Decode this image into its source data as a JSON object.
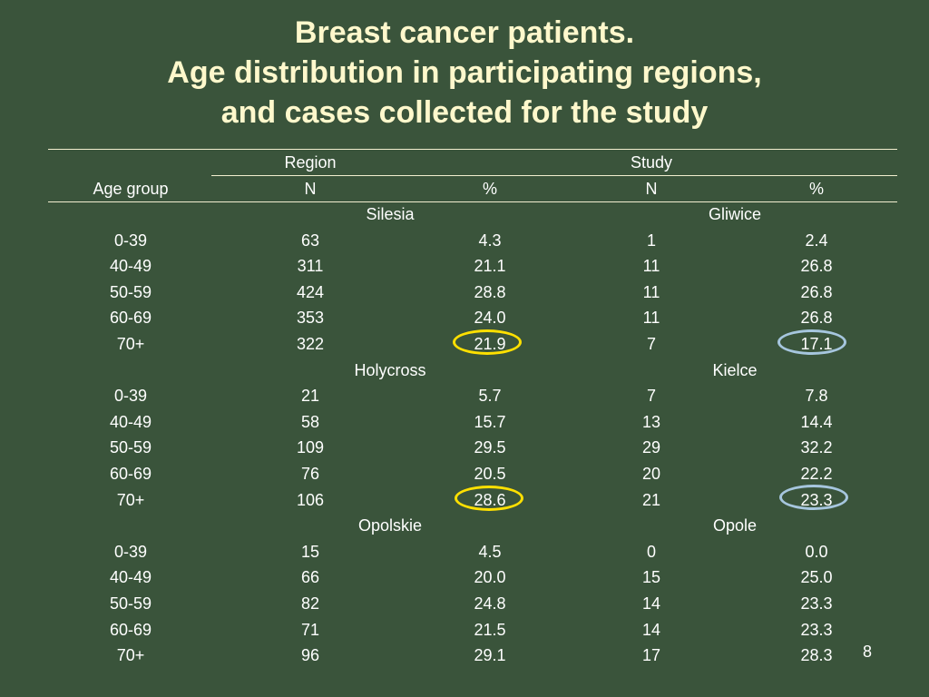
{
  "title": {
    "line1": "Breast cancer patients.",
    "line2": "Age distribution in participating regions,",
    "line3": "and cases collected for the study"
  },
  "table": {
    "headers": {
      "age_group": "Age group",
      "region": "Region",
      "study": "Study",
      "region_n": "N",
      "region_pct": "%",
      "study_n": "N",
      "study_pct": "%"
    },
    "groups": [
      {
        "region": "Silesia",
        "study": "Gliwice",
        "rows": [
          {
            "age": "0-39",
            "rn": "63",
            "rp": "4.3",
            "sn": "1",
            "sp": "2.4"
          },
          {
            "age": "40-49",
            "rn": "311",
            "rp": "21.1",
            "sn": "11",
            "sp": "26.8"
          },
          {
            "age": "50-59",
            "rn": "424",
            "rp": "28.8",
            "sn": "11",
            "sp": "26.8"
          },
          {
            "age": "60-69",
            "rn": "353",
            "rp": "24.0",
            "sn": "11",
            "sp": "26.8"
          },
          {
            "age": "70+",
            "rn": "322",
            "rp": "21.9",
            "sn": "7",
            "sp": "17.1"
          }
        ]
      },
      {
        "region": "Holycross",
        "study": "Kielce",
        "rows": [
          {
            "age": "0-39",
            "rn": "21",
            "rp": "5.7",
            "sn": "7",
            "sp": "7.8"
          },
          {
            "age": "40-49",
            "rn": "58",
            "rp": "15.7",
            "sn": "13",
            "sp": "14.4"
          },
          {
            "age": "50-59",
            "rn": "109",
            "rp": "29.5",
            "sn": "29",
            "sp": "32.2"
          },
          {
            "age": "60-69",
            "rn": "76",
            "rp": "20.5",
            "sn": "20",
            "sp": "22.2"
          },
          {
            "age": "70+",
            "rn": "106",
            "rp": "28.6",
            "sn": "21",
            "sp": "23.3"
          }
        ]
      },
      {
        "region": "Opolskie",
        "study": "Opole",
        "rows": [
          {
            "age": "0-39",
            "rn": "15",
            "rp": "4.5",
            "sn": "0",
            "sp": "0.0"
          },
          {
            "age": "40-49",
            "rn": "66",
            "rp": "20.0",
            "sn": "15",
            "sp": "25.0"
          },
          {
            "age": "50-59",
            "rn": "82",
            "rp": "24.8",
            "sn": "14",
            "sp": "23.3"
          },
          {
            "age": "60-69",
            "rn": "71",
            "rp": "21.5",
            "sn": "14",
            "sp": "23.3"
          },
          {
            "age": "70+",
            "rn": "96",
            "rp": "29.1",
            "sn": "17",
            "sp": "28.3"
          }
        ]
      }
    ]
  },
  "highlight_colors": {
    "region_pct": "#ffe000",
    "study_pct": "#a6c6de"
  },
  "page_number": "8"
}
